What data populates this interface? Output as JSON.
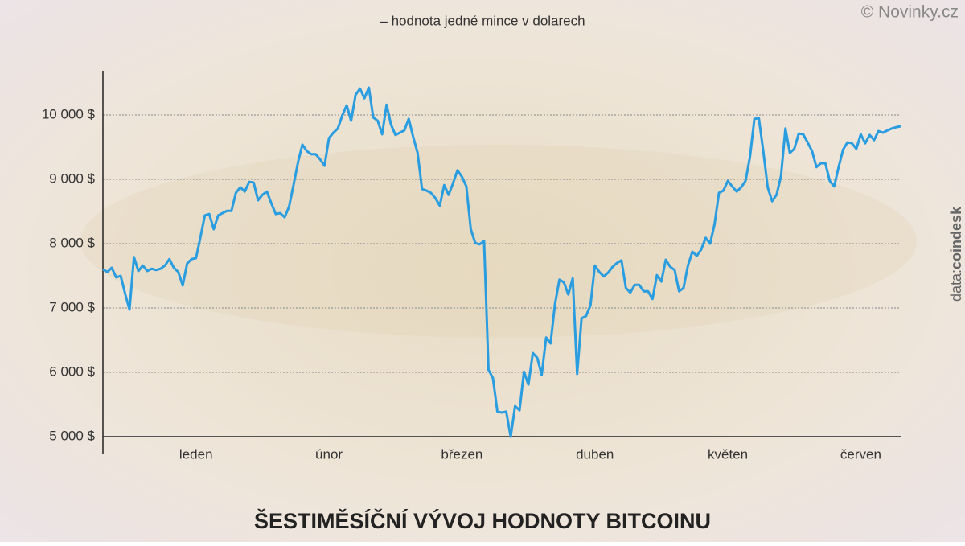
{
  "chart_data": {
    "type": "line",
    "title": "ŠESTIMĚSÍČNÍ VÝVOJ HODNOTY BITCOINU",
    "subtitle": "– hodnota jedné mince v dolarech",
    "credit": "© Novinky.cz",
    "source_label": "data:",
    "source": "coindesk",
    "xlim": [
      0,
      180
    ],
    "xticks": [
      {
        "value": 21,
        "label": "leden"
      },
      {
        "value": 51,
        "label": "únor"
      },
      {
        "value": 81,
        "label": "březen"
      },
      {
        "value": 111,
        "label": "duben"
      },
      {
        "value": 141,
        "label": "květen"
      },
      {
        "value": 171,
        "label": "červen"
      }
    ],
    "ylim": [
      5000,
      10500
    ],
    "yticks": [
      {
        "value": 5000,
        "label": "5 000 $"
      },
      {
        "value": 6000,
        "label": "6 000 $"
      },
      {
        "value": 7000,
        "label": "7 000 $"
      },
      {
        "value": 8000,
        "label": "8 000 $"
      },
      {
        "value": 9000,
        "label": "9 000 $"
      },
      {
        "value": 10000,
        "label": "10 000 $"
      }
    ],
    "grid": true,
    "color": "#2a9de0",
    "values": [
      7600,
      7560,
      7625,
      7475,
      7500,
      7225,
      6975,
      7790,
      7575,
      7660,
      7575,
      7610,
      7590,
      7610,
      7660,
      7760,
      7625,
      7560,
      7350,
      7690,
      7760,
      7775,
      8100,
      8440,
      8460,
      8225,
      8440,
      8475,
      8510,
      8510,
      8790,
      8875,
      8810,
      8960,
      8950,
      8675,
      8760,
      8810,
      8625,
      8460,
      8475,
      8410,
      8575,
      8910,
      9260,
      9540,
      9440,
      9390,
      9390,
      9310,
      9210,
      9640,
      9725,
      9790,
      9990,
      10150,
      9910,
      10310,
      10410,
      10260,
      10425,
      9960,
      9910,
      9700,
      10160,
      9850,
      9690,
      9725,
      9760,
      9940,
      9660,
      9410,
      8850,
      8825,
      8790,
      8710,
      8590,
      8910,
      8760,
      8940,
      9140,
      9040,
      8890,
      8225,
      8010,
      7990,
      8040,
      6040,
      5910,
      5390,
      5375,
      5390,
      5000,
      5475,
      5410,
      6010,
      5810,
      6300,
      6225,
      5960,
      6540,
      6450,
      7060,
      7440,
      7400,
      7210,
      7460,
      5975,
      6840,
      6875,
      7040,
      7660,
      7560,
      7490,
      7550,
      7640,
      7700,
      7740,
      7310,
      7240,
      7360,
      7360,
      7260,
      7260,
      7140,
      7510,
      7410,
      7750,
      7640,
      7590,
      7260,
      7310,
      7660,
      7875,
      7810,
      7910,
      8090,
      8000,
      8300,
      8790,
      8825,
      8975,
      8890,
      8810,
      8875,
      8975,
      9350,
      9940,
      9950,
      9440,
      8875,
      8660,
      8760,
      9050,
      9790,
      9410,
      9475,
      9710,
      9700,
      9575,
      9440,
      9190,
      9250,
      9250,
      8975,
      8890,
      9190,
      9460,
      9575,
      9560,
      9475,
      9700,
      9560,
      9690,
      9610,
      9750,
      9725,
      9760,
      9790,
      9810,
      9825
    ]
  }
}
